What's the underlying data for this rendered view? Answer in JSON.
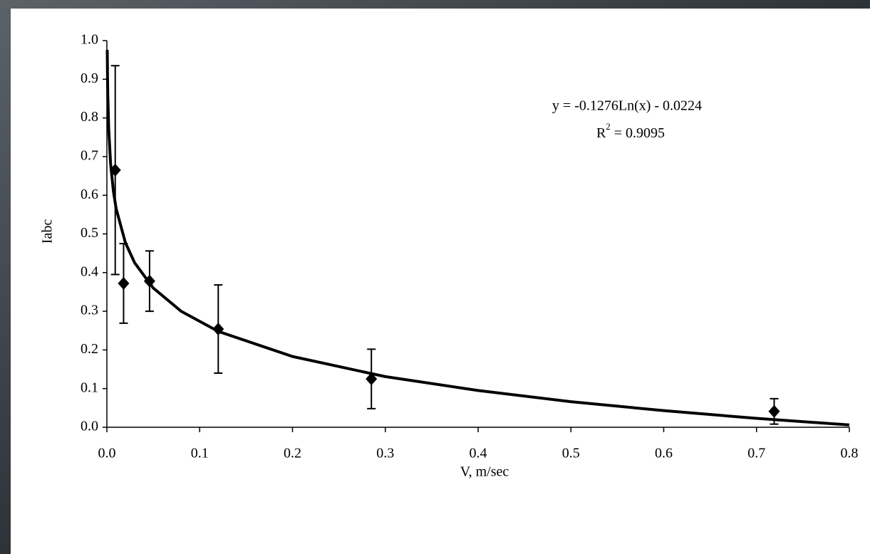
{
  "chart_data": {
    "type": "scatter",
    "x_label": "V, m/sec",
    "y_label": "Iabc",
    "equation": "y = -0.1276Ln(x) - 0.0224",
    "r2_text": [
      "R",
      "2",
      " = 0.9095"
    ],
    "series": [
      {
        "color": "#000000",
        "x": [
          0.009,
          0.018,
          0.046,
          0.12,
          0.285,
          0.719
        ],
        "values": [
          0.665,
          0.372,
          0.378,
          0.254,
          0.125,
          0.041
        ],
        "errors": [
          0.27,
          0.103,
          0.078,
          0.114,
          0.077,
          0.033
        ]
      }
    ],
    "trend": {
      "color": "#000000",
      "x": [
        0.0004,
        0.0007,
        0.001,
        0.002,
        0.004,
        0.007,
        0.01,
        0.02,
        0.03,
        0.05,
        0.08,
        0.12,
        0.2,
        0.3,
        0.4,
        0.5,
        0.6,
        0.7,
        0.8
      ],
      "values": [
        0.976,
        0.905,
        0.859,
        0.771,
        0.682,
        0.611,
        0.565,
        0.477,
        0.425,
        0.36,
        0.3,
        0.248,
        0.183,
        0.131,
        0.095,
        0.066,
        0.043,
        0.023,
        0.006
      ]
    },
    "xlim": [
      0,
      0.8
    ],
    "ylim": [
      0,
      1
    ],
    "xticks": [
      {
        "value": 0,
        "label": "0.0"
      },
      0.1,
      0.2,
      0.3,
      0.4,
      0.5,
      0.6,
      0.7,
      0.8
    ],
    "yticks": [
      {
        "value": 0,
        "label": "0.0"
      },
      0.1,
      0.2,
      0.3,
      0.4,
      0.5,
      0.6,
      0.7,
      0.8,
      0.9,
      {
        "value": 1,
        "label": "1.0"
      }
    ]
  }
}
